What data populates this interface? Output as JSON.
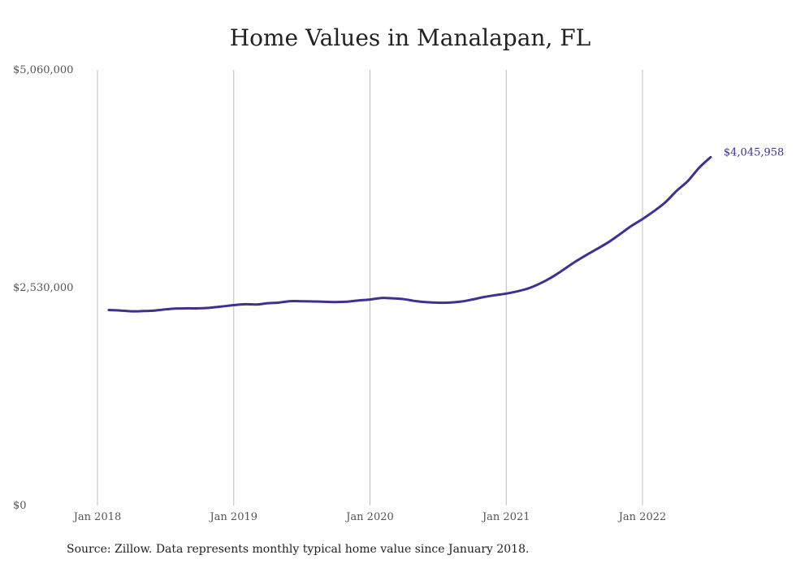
{
  "chart_data": {
    "type": "line",
    "title": "Home Values in Manalapan, FL",
    "xlabel": "",
    "ylabel": "",
    "ylim": [
      0,
      5060000
    ],
    "y_ticks": [
      "$0",
      "$2,530,000",
      "$5,060,000"
    ],
    "y_tick_values": [
      0,
      2530000,
      5060000
    ],
    "x_ticks": [
      "Jan 2018",
      "Jan 2019",
      "Jan 2020",
      "Jan 2021",
      "Jan 2022"
    ],
    "x_tick_dates": [
      "2018-01",
      "2019-01",
      "2020-01",
      "2021-01",
      "2022-01"
    ],
    "grid": "vertical",
    "series": [
      {
        "color": "#3d3194",
        "end_label": "$4,045,958",
        "points": [
          [
            "2018-02",
            2270000
          ],
          [
            "2018-03",
            2265000
          ],
          [
            "2018-04",
            2255000
          ],
          [
            "2018-05",
            2258000
          ],
          [
            "2018-06",
            2263000
          ],
          [
            "2018-07",
            2278000
          ],
          [
            "2018-08",
            2288000
          ],
          [
            "2018-09",
            2290000
          ],
          [
            "2018-10",
            2290000
          ],
          [
            "2018-11",
            2298000
          ],
          [
            "2018-12",
            2312000
          ],
          [
            "2019-01",
            2327000
          ],
          [
            "2019-02",
            2338000
          ],
          [
            "2019-03",
            2334000
          ],
          [
            "2019-04",
            2349000
          ],
          [
            "2019-05",
            2357000
          ],
          [
            "2019-06",
            2373000
          ],
          [
            "2019-07",
            2372000
          ],
          [
            "2019-08",
            2370000
          ],
          [
            "2019-09",
            2366000
          ],
          [
            "2019-10",
            2363000
          ],
          [
            "2019-11",
            2367000
          ],
          [
            "2019-12",
            2381000
          ],
          [
            "2020-01",
            2392000
          ],
          [
            "2020-02",
            2410000
          ],
          [
            "2020-03",
            2406000
          ],
          [
            "2020-04",
            2396000
          ],
          [
            "2020-05",
            2374000
          ],
          [
            "2020-06",
            2361000
          ],
          [
            "2020-07",
            2355000
          ],
          [
            "2020-08",
            2356000
          ],
          [
            "2020-09",
            2368000
          ],
          [
            "2020-10",
            2392000
          ],
          [
            "2020-11",
            2420000
          ],
          [
            "2020-12",
            2442000
          ],
          [
            "2021-01",
            2461000
          ],
          [
            "2021-02",
            2488000
          ],
          [
            "2021-03",
            2524000
          ],
          [
            "2021-04",
            2580000
          ],
          [
            "2021-05",
            2650000
          ],
          [
            "2021-06",
            2735000
          ],
          [
            "2021-07",
            2825000
          ],
          [
            "2021-08",
            2905000
          ],
          [
            "2021-09",
            2980000
          ],
          [
            "2021-10",
            3058000
          ],
          [
            "2021-11",
            3150000
          ],
          [
            "2021-12",
            3245000
          ],
          [
            "2022-01",
            3327000
          ],
          [
            "2022-02",
            3418000
          ],
          [
            "2022-03",
            3520000
          ],
          [
            "2022-04",
            3654000
          ],
          [
            "2022-05",
            3770000
          ],
          [
            "2022-06",
            3925000
          ],
          [
            "2022-07",
            4045958
          ]
        ]
      }
    ]
  },
  "footer": {
    "source": "Source: Zillow. Data represents monthly typical home value since January 2018."
  }
}
